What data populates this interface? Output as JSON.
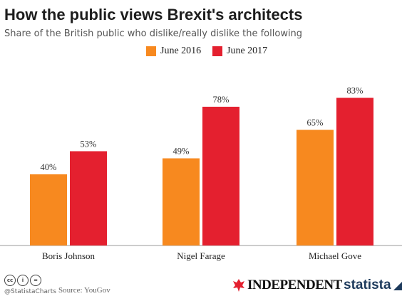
{
  "title": "How the public views Brexit's architects",
  "subtitle": "Share of the British public who dislike/really dislike the following",
  "colors": {
    "june2016": "#f7891f",
    "june2017": "#e4202f",
    "axis": "#999999",
    "grid": "#e6e6e6"
  },
  "chart_data": {
    "type": "bar",
    "categories": [
      "Boris Johnson",
      "Nigel Farage",
      "Michael Gove"
    ],
    "series": [
      {
        "name": "June 2016",
        "values": [
          40,
          49,
          65
        ],
        "labels": [
          "40%",
          "49%",
          "65%"
        ]
      },
      {
        "name": "June 2017",
        "values": [
          53,
          78,
          83
        ],
        "labels": [
          "53%",
          "78%",
          "83%"
        ]
      }
    ],
    "ylim": [
      0,
      100
    ],
    "legend": "top-center",
    "grid": true
  },
  "footer": {
    "handle": "@StatistaCharts",
    "source": "Source: YouGov",
    "independent": "INDEPENDENT",
    "statista": "statista",
    "cc_icons": [
      "cc-icon",
      "by-icon",
      "nd-icon"
    ]
  }
}
